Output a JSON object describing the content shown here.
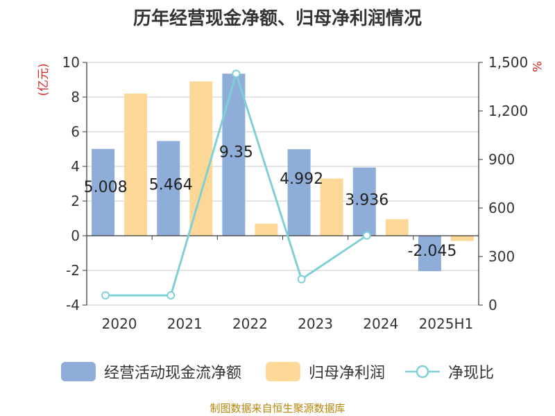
{
  "title": "历年经营现金净额、归母净利润情况",
  "source": "制图数据来自恒生聚源数据库",
  "colors": {
    "cash": "#8fadd9",
    "profit": "#fdd797",
    "ratio": "#7fd0d6",
    "unit": "#d62728"
  },
  "chart_data": {
    "type": "bar",
    "categories": [
      "2020",
      "2021",
      "2022",
      "2023",
      "2024",
      "2025H1"
    ],
    "series": [
      {
        "name": "经营活动现金流净额",
        "axis": "left",
        "values": [
          5.008,
          5.464,
          9.35,
          4.992,
          3.936,
          -2.045
        ],
        "labels": [
          "5.008",
          "5.464",
          "9.35",
          "4.992",
          "3.936",
          "-2.045"
        ]
      },
      {
        "name": "归母净利润",
        "axis": "left",
        "values": [
          8.2,
          8.9,
          0.7,
          3.3,
          0.95,
          -0.3
        ]
      },
      {
        "name": "净现比",
        "type": "line",
        "axis": "right",
        "values": [
          60,
          60,
          1430,
          160,
          430,
          null
        ]
      }
    ],
    "yleft": {
      "label": "(亿元)",
      "lim": [
        -4,
        10
      ],
      "ticks": [
        -4,
        -2,
        0,
        2,
        4,
        6,
        8,
        10
      ],
      "tick_labels": [
        "-4",
        "-2",
        "0",
        "2",
        "4",
        "6",
        "8",
        "10"
      ]
    },
    "yright": {
      "label": "%",
      "lim": [
        0,
        1500
      ],
      "ticks": [
        0,
        300,
        600,
        900,
        1200,
        1500
      ],
      "tick_labels": [
        "0",
        "300",
        "600",
        "900",
        "1,200",
        "1,500"
      ]
    },
    "grid": true,
    "legend": "bottom"
  }
}
